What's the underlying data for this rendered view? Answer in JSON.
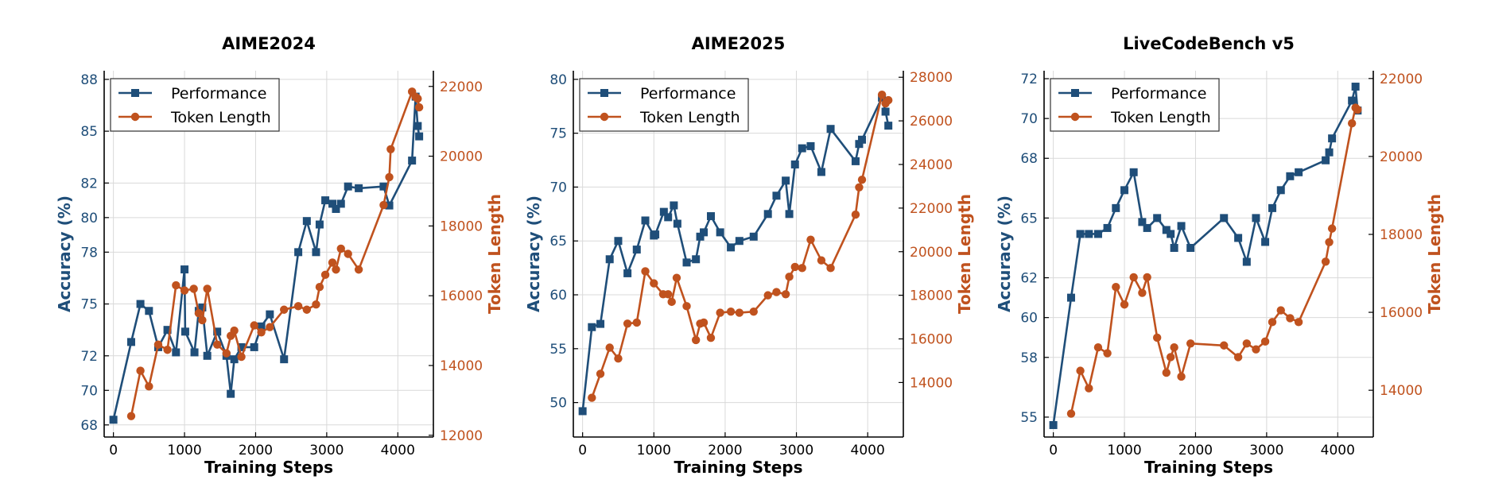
{
  "colors": {
    "performance": "#1f4e79",
    "token": "#c0521e",
    "grid": "#d9d9d9",
    "axis": "#000000"
  },
  "chart_data": [
    {
      "type": "line",
      "title": "AIME2024",
      "xlabel": "Training Steps",
      "ylabel": "Accuracy (%)",
      "y2label": "Token Length",
      "xlim": [
        -130,
        4500
      ],
      "xticks": [
        0,
        1000,
        2000,
        3000,
        4000
      ],
      "ylim": [
        67.3,
        88.5
      ],
      "yticks": [
        68,
        70,
        72,
        75,
        78,
        80,
        82,
        85,
        88
      ],
      "y2lim": [
        11950,
        22450
      ],
      "y2ticks": [
        12000,
        14000,
        16000,
        18000,
        20000,
        22000
      ],
      "grid": true,
      "legend": "top-left",
      "series": [
        {
          "name": "Performance",
          "axis": "left",
          "marker": "square",
          "x": [
            0,
            250,
            380,
            500,
            630,
            760,
            880,
            1000,
            1010,
            1140,
            1200,
            1250,
            1320,
            1460,
            1590,
            1650,
            1700,
            1800,
            1980,
            2080,
            2200,
            2400,
            2600,
            2720,
            2850,
            2900,
            2980,
            3080,
            3130,
            3200,
            3300,
            3450,
            3800,
            3880,
            4200,
            4250,
            4280,
            4300
          ],
          "y": [
            68.3,
            72.8,
            75.0,
            74.6,
            72.5,
            73.5,
            72.2,
            77.0,
            73.4,
            72.2,
            74.6,
            74.8,
            72.0,
            73.4,
            72.0,
            69.8,
            71.8,
            72.5,
            72.5,
            73.7,
            74.4,
            71.8,
            78.0,
            79.8,
            78.0,
            79.6,
            81.0,
            80.8,
            80.5,
            80.8,
            81.8,
            81.7,
            81.8,
            80.7,
            83.3,
            87.0,
            85.3,
            84.7
          ]
        },
        {
          "name": "Token Length",
          "axis": "right",
          "marker": "circle",
          "x": [
            250,
            380,
            500,
            630,
            760,
            880,
            1000,
            1130,
            1200,
            1250,
            1320,
            1460,
            1590,
            1650,
            1700,
            1800,
            1980,
            2080,
            2200,
            2400,
            2600,
            2720,
            2850,
            2900,
            2980,
            3080,
            3130,
            3200,
            3300,
            3450,
            3800,
            3880,
            3900,
            4200,
            4250,
            4280,
            4300
          ],
          "y": [
            12550,
            13850,
            13400,
            14600,
            14450,
            16300,
            16150,
            16200,
            15500,
            15300,
            16200,
            14600,
            14350,
            14850,
            15000,
            14250,
            15150,
            14950,
            15100,
            15600,
            15700,
            15600,
            15750,
            16250,
            16600,
            16950,
            16750,
            17350,
            17200,
            16750,
            18600,
            19400,
            20200,
            21850,
            21700,
            21650,
            21400
          ]
        }
      ]
    },
    {
      "type": "line",
      "title": "AIME2025",
      "xlabel": "Training Steps",
      "ylabel": "Accuracy (%)",
      "y2label": "Token Length",
      "xlim": [
        -130,
        4500
      ],
      "xticks": [
        0,
        1000,
        2000,
        3000,
        4000
      ],
      "ylim": [
        46.8,
        80.8
      ],
      "yticks": [
        50,
        55,
        60,
        65,
        70,
        75,
        80
      ],
      "y2lim": [
        11500,
        28300
      ],
      "y2ticks": [
        14000,
        16000,
        18000,
        20000,
        22000,
        24000,
        26000,
        28000
      ],
      "grid": true,
      "legend": "top-left",
      "series": [
        {
          "name": "Performance",
          "axis": "left",
          "marker": "square",
          "x": [
            0,
            130,
            250,
            380,
            500,
            630,
            760,
            880,
            1000,
            1020,
            1140,
            1200,
            1280,
            1330,
            1460,
            1590,
            1650,
            1700,
            1800,
            1930,
            2080,
            2200,
            2400,
            2600,
            2720,
            2850,
            2900,
            2980,
            3080,
            3200,
            3350,
            3480,
            3830,
            3880,
            3920,
            4200,
            4250,
            4290
          ],
          "y": [
            49.2,
            57.0,
            57.3,
            63.3,
            65.0,
            62.0,
            64.2,
            66.9,
            65.5,
            65.6,
            67.7,
            67.2,
            68.3,
            66.6,
            63.0,
            63.3,
            65.4,
            65.8,
            67.3,
            65.8,
            64.4,
            65.0,
            65.4,
            67.5,
            69.2,
            70.6,
            67.5,
            72.1,
            73.6,
            73.8,
            71.4,
            75.4,
            72.4,
            74.0,
            74.4,
            78.3,
            77.0,
            75.7
          ]
        },
        {
          "name": "Token Length",
          "axis": "right",
          "marker": "circle",
          "x": [
            130,
            250,
            380,
            500,
            630,
            760,
            880,
            1000,
            1130,
            1200,
            1250,
            1320,
            1460,
            1590,
            1650,
            1700,
            1800,
            1930,
            2080,
            2200,
            2400,
            2600,
            2720,
            2850,
            2900,
            2980,
            3080,
            3200,
            3350,
            3480,
            3830,
            3880,
            3920,
            4200,
            4250,
            4290
          ],
          "y": [
            13300,
            14400,
            15600,
            15100,
            16700,
            16750,
            19100,
            18550,
            18050,
            18050,
            17700,
            18800,
            17500,
            15950,
            16700,
            16750,
            16050,
            17200,
            17250,
            17200,
            17250,
            18000,
            18150,
            18050,
            18850,
            19300,
            19250,
            20550,
            19600,
            19250,
            21700,
            22950,
            23300,
            27200,
            26800,
            26950
          ]
        }
      ]
    },
    {
      "type": "line",
      "title": "LiveCodeBench v5",
      "xlabel": "Training Steps",
      "ylabel": "Accuracy (%)",
      "y2label": "Token Length",
      "xlim": [
        -130,
        4500
      ],
      "xticks": [
        0,
        1000,
        2000,
        3000,
        4000
      ],
      "ylim": [
        54.0,
        72.4
      ],
      "yticks": [
        55,
        58,
        60,
        62,
        65,
        68,
        70,
        72
      ],
      "y2lim": [
        12800,
        22200
      ],
      "y2ticks": [
        14000,
        16000,
        18000,
        20000,
        22000
      ],
      "grid": true,
      "legend": "top-left",
      "series": [
        {
          "name": "Performance",
          "axis": "left",
          "marker": "square",
          "x": [
            0,
            250,
            380,
            500,
            630,
            760,
            880,
            1000,
            1130,
            1250,
            1320,
            1460,
            1590,
            1650,
            1700,
            1800,
            1930,
            2400,
            2600,
            2720,
            2850,
            2980,
            3080,
            3200,
            3330,
            3450,
            3830,
            3880,
            3920,
            4200,
            4250,
            4280
          ],
          "y": [
            54.6,
            61.0,
            64.2,
            64.2,
            64.2,
            64.5,
            65.5,
            66.4,
            67.3,
            64.8,
            64.5,
            65.0,
            64.4,
            64.2,
            63.5,
            64.6,
            63.5,
            65.0,
            64.0,
            62.8,
            65.0,
            63.8,
            65.5,
            66.4,
            67.1,
            67.3,
            67.9,
            68.3,
            69.0,
            70.9,
            71.6,
            70.4
          ]
        },
        {
          "name": "Token Length",
          "axis": "right",
          "marker": "circle",
          "x": [
            250,
            380,
            500,
            630,
            760,
            880,
            1000,
            1130,
            1250,
            1320,
            1460,
            1590,
            1650,
            1700,
            1800,
            1930,
            2400,
            2600,
            2720,
            2850,
            2980,
            3080,
            3200,
            3330,
            3450,
            3830,
            3880,
            3920,
            4200,
            4250,
            4280
          ],
          "y": [
            13400,
            14500,
            14050,
            15100,
            14950,
            16650,
            16200,
            16900,
            16500,
            16900,
            15350,
            14450,
            14850,
            15100,
            14350,
            15200,
            15150,
            14850,
            15200,
            15050,
            15250,
            15750,
            16050,
            15850,
            15750,
            17300,
            17800,
            18150,
            20850,
            21250,
            21200
          ]
        }
      ]
    }
  ]
}
